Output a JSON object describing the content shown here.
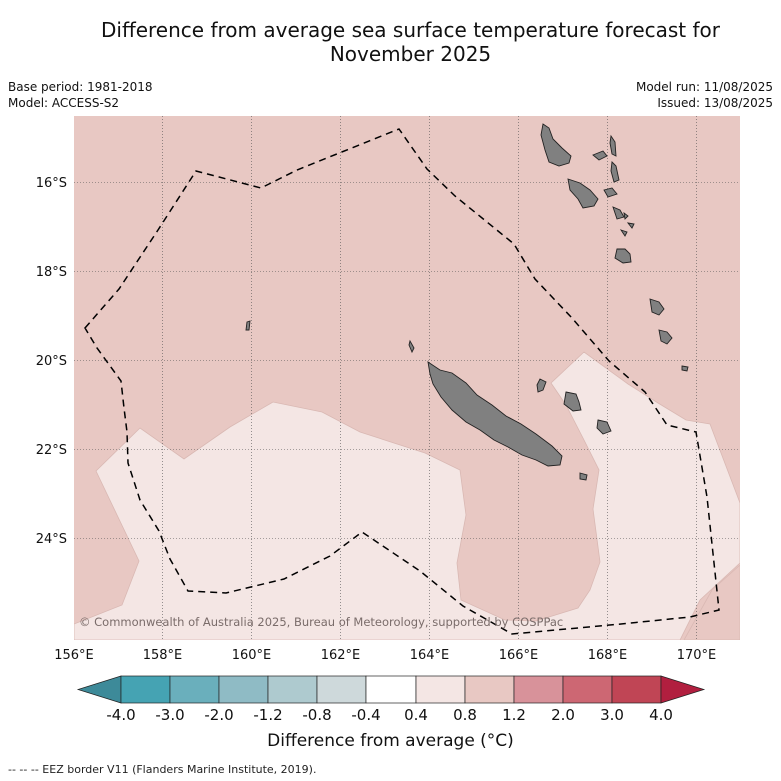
{
  "header": {
    "title_line1": "Difference from average sea surface temperature forecast for",
    "title_line2": "November 2025",
    "base_period": "Base period: 1981-2018",
    "model": "Model: ACCESS-S2",
    "model_run": "Model run: 11/08/2025",
    "issued": "Issued: 13/08/2025"
  },
  "map": {
    "copyright": "© Commonwealth of Australia 2025, Bureau of Meteorology, supported by COSPPac",
    "lon_ticks": [
      "156°E",
      "158°E",
      "160°E",
      "162°E",
      "164°E",
      "166°E",
      "168°E",
      "170°E"
    ],
    "lat_ticks": [
      "16°S",
      "18°S",
      "20°S",
      "22°S",
      "24°S"
    ],
    "colors": {
      "anomaly_04_08": "#f4e6e4",
      "anomaly_08_12": "#e8c8c3",
      "land": "#808080",
      "eez": "#000000"
    }
  },
  "colorbar": {
    "title": "Difference from average (°C)",
    "tick_labels": [
      "-4.0",
      "-3.0",
      "-2.0",
      "-1.2",
      "-0.8",
      "-0.4",
      "0.4",
      "0.8",
      "1.2",
      "2.0",
      "3.0",
      "4.0"
    ],
    "colors": [
      "#3d8a99",
      "#45a3b3",
      "#6aafbc",
      "#8fbbc5",
      "#aecacf",
      "#ced9db",
      "#ffffff",
      "#f4e6e4",
      "#e8c8c3",
      "#d8929a",
      "#cd6773",
      "#c04555",
      "#b11f3f"
    ]
  },
  "footnote": "--  --  -- EEZ border V11 (Flanders Marine Institute, 2019)."
}
